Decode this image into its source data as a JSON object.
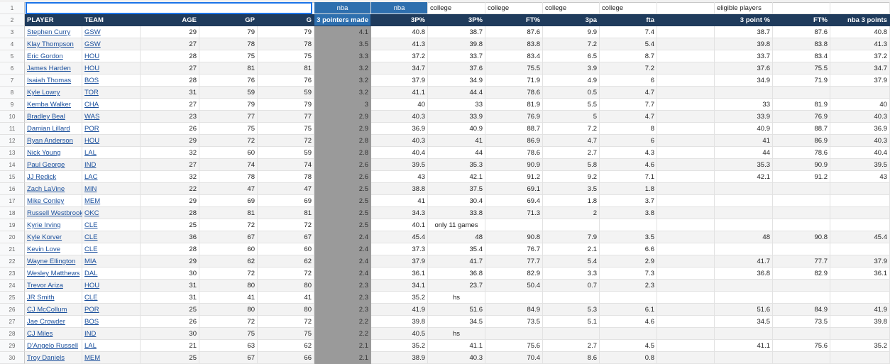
{
  "row_numbers": [
    1,
    2,
    3,
    4,
    5,
    6,
    7,
    8,
    9,
    10,
    11,
    12,
    13,
    14,
    15,
    16,
    17,
    18,
    19,
    20,
    21,
    22,
    23,
    24,
    25,
    26,
    27,
    28,
    29,
    30
  ],
  "row1": {
    "F": "nba",
    "G": "nba",
    "H": "college",
    "I": "college",
    "J": "college",
    "K": "college",
    "M": "eligible players"
  },
  "header": {
    "A": "PLAYER",
    "B": "TEAM",
    "C": "AGE",
    "D": "GP",
    "E": "G",
    "F": "3 pointers made",
    "G": "3P%",
    "H": "3P%",
    "I": "FT%",
    "J": "3pa",
    "K": "fta",
    "M": "3 point %",
    "N": "FT%",
    "O": "nba 3 points"
  },
  "rows": [
    {
      "cells": [
        "Stephen Curry",
        "GSW",
        29,
        79,
        79,
        4.1,
        40.8,
        38.7,
        87.6,
        9.9,
        7.4,
        null,
        38.7,
        87.6,
        40.8
      ]
    },
    {
      "cells": [
        "Klay Thompson",
        "GSW",
        27,
        78,
        78,
        3.5,
        41.3,
        39.8,
        83.8,
        7.2,
        5.4,
        null,
        39.8,
        83.8,
        41.3
      ]
    },
    {
      "cells": [
        "Eric Gordon",
        "HOU",
        28,
        75,
        75,
        3.3,
        37.2,
        33.7,
        83.4,
        6.5,
        8.7,
        null,
        33.7,
        83.4,
        37.2
      ]
    },
    {
      "cells": [
        "James Harden",
        "HOU",
        27,
        81,
        81,
        3.2,
        34.7,
        37.6,
        75.5,
        3.9,
        7.2,
        null,
        37.6,
        75.5,
        34.7
      ]
    },
    {
      "cells": [
        "Isaiah Thomas",
        "BOS",
        28,
        76,
        76,
        3.2,
        37.9,
        34.9,
        71.9,
        4.9,
        6,
        null,
        34.9,
        71.9,
        37.9
      ]
    },
    {
      "cells": [
        "Kyle Lowry",
        "TOR",
        31,
        59,
        59,
        3.2,
        41.1,
        44.4,
        78.6,
        0.5,
        4.7,
        null,
        null,
        null,
        null
      ]
    },
    {
      "cells": [
        "Kemba Walker",
        "CHA",
        27,
        79,
        79,
        3,
        40,
        33,
        81.9,
        5.5,
        7.7,
        null,
        33,
        81.9,
        40
      ]
    },
    {
      "cells": [
        "Bradley Beal",
        "WAS",
        23,
        77,
        77,
        2.9,
        40.3,
        33.9,
        76.9,
        5,
        4.7,
        null,
        33.9,
        76.9,
        40.3
      ]
    },
    {
      "cells": [
        "Damian Lillard",
        "POR",
        26,
        75,
        75,
        2.9,
        36.9,
        40.9,
        88.7,
        7.2,
        8,
        null,
        40.9,
        88.7,
        36.9
      ]
    },
    {
      "cells": [
        "Ryan Anderson",
        "HOU",
        29,
        72,
        72,
        2.8,
        40.3,
        41,
        86.9,
        4.7,
        6,
        null,
        41,
        86.9,
        40.3
      ]
    },
    {
      "cells": [
        "Nick Young",
        "LAL",
        32,
        60,
        59,
        2.8,
        40.4,
        44,
        78.6,
        2.7,
        4.3,
        null,
        44,
        78.6,
        40.4
      ]
    },
    {
      "cells": [
        "Paul George",
        "IND",
        27,
        74,
        74,
        2.6,
        39.5,
        35.3,
        90.9,
        5.8,
        4.6,
        null,
        35.3,
        90.9,
        39.5
      ]
    },
    {
      "cells": [
        "JJ Redick",
        "LAC",
        32,
        78,
        78,
        2.6,
        43,
        42.1,
        91.2,
        9.2,
        7.1,
        null,
        42.1,
        91.2,
        43
      ]
    },
    {
      "cells": [
        "Zach LaVine",
        "MIN",
        22,
        47,
        47,
        2.5,
        38.8,
        37.5,
        69.1,
        3.5,
        1.8,
        null,
        null,
        null,
        null
      ]
    },
    {
      "cells": [
        "Mike Conley",
        "MEM",
        29,
        69,
        69,
        2.5,
        41,
        30.4,
        69.4,
        1.8,
        3.7,
        null,
        null,
        null,
        null
      ]
    },
    {
      "cells": [
        "Russell Westbrook",
        "OKC",
        28,
        81,
        81,
        2.5,
        34.3,
        33.8,
        71.3,
        2,
        3.8,
        null,
        null,
        null,
        null
      ]
    },
    {
      "cells": [
        "Kyrie Irving",
        "CLE",
        25,
        72,
        72,
        2.5,
        40.1,
        "only 11 games",
        null,
        null,
        null,
        null,
        null,
        null,
        null
      ]
    },
    {
      "cells": [
        "Kyle Korver",
        "CLE",
        36,
        67,
        67,
        2.4,
        45.4,
        48,
        90.8,
        7.9,
        3.5,
        null,
        48,
        90.8,
        45.4
      ]
    },
    {
      "cells": [
        "Kevin Love",
        "CLE",
        28,
        60,
        60,
        2.4,
        37.3,
        35.4,
        76.7,
        2.1,
        6.6,
        null,
        null,
        null,
        null
      ]
    },
    {
      "cells": [
        "Wayne Ellington",
        "MIA",
        29,
        62,
        62,
        2.4,
        37.9,
        41.7,
        77.7,
        5.4,
        2.9,
        null,
        41.7,
        77.7,
        37.9
      ]
    },
    {
      "cells": [
        "Wesley Matthews",
        "DAL",
        30,
        72,
        72,
        2.4,
        36.1,
        36.8,
        82.9,
        3.3,
        7.3,
        null,
        36.8,
        82.9,
        36.1
      ]
    },
    {
      "cells": [
        "Trevor Ariza",
        "HOU",
        31,
        80,
        80,
        2.3,
        34.1,
        23.7,
        50.4,
        0.7,
        2.3,
        null,
        null,
        null,
        null
      ]
    },
    {
      "cells": [
        "JR Smith",
        "CLE",
        31,
        41,
        41,
        2.3,
        35.2,
        "hs",
        null,
        null,
        null,
        null,
        null,
        null,
        null
      ]
    },
    {
      "cells": [
        "CJ McCollum",
        "POR",
        25,
        80,
        80,
        2.3,
        41.9,
        51.6,
        84.9,
        5.3,
        6.1,
        null,
        51.6,
        84.9,
        41.9
      ]
    },
    {
      "cells": [
        "Jae Crowder",
        "BOS",
        26,
        72,
        72,
        2.2,
        39.8,
        34.5,
        73.5,
        5.1,
        4.6,
        null,
        34.5,
        73.5,
        39.8
      ]
    },
    {
      "cells": [
        "CJ Miles",
        "IND",
        30,
        75,
        75,
        2.2,
        40.5,
        "hs",
        null,
        null,
        null,
        null,
        null,
        null,
        null
      ]
    },
    {
      "cells": [
        "D'Angelo Russell",
        "LAL",
        21,
        63,
        62,
        2.1,
        35.2,
        41.1,
        75.6,
        2.7,
        4.5,
        null,
        41.1,
        75.6,
        35.2
      ]
    },
    {
      "cells": [
        "Troy Daniels",
        "MEM",
        25,
        67,
        66,
        2.1,
        38.9,
        40.3,
        70.4,
        8.6,
        0.8,
        null,
        null,
        null,
        null
      ]
    }
  ]
}
